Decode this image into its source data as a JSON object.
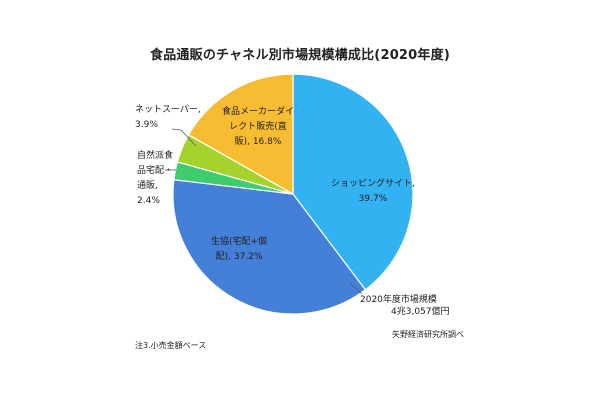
{
  "chart_data": {
    "type": "pie",
    "title": "食品通販のチャネル別市場規模構成比(2020年度)",
    "slices": [
      {
        "name": "ショッピングサイト",
        "value": 39.7,
        "color": "#33b2f2",
        "label_lines": [
          "ショッピングサイト,",
          "39.7%"
        ]
      },
      {
        "name": "生協(宅配+個配)",
        "value": 37.2,
        "color": "#4480d8",
        "label_lines": [
          "生協(宅配+個",
          "配), 37.2%"
        ]
      },
      {
        "name": "自然派食品宅配・通販",
        "value": 2.4,
        "color": "#3fcc6e",
        "label_lines": [
          "自然派食",
          "品宅配・",
          "通販,",
          "2.4%"
        ]
      },
      {
        "name": "ネットスーパー",
        "value": 3.9,
        "color": "#a6d22e",
        "label_lines": [
          "ネットスーパー,",
          "3.9%"
        ]
      },
      {
        "name": "食品メーカーダイレクト販売(直販)",
        "value": 16.8,
        "color": "#f6bd33",
        "label_lines": [
          "食品メーカーダイ",
          "レクト販売(直",
          "販), 16.8%"
        ]
      }
    ],
    "start_angle_deg": 0,
    "direction": "clockwise",
    "center_note": [
      "2020年度市場規模",
      "4兆3,057億円"
    ]
  },
  "source": "矢野経済研究所調べ",
  "note": "注3.小売金額ベース"
}
